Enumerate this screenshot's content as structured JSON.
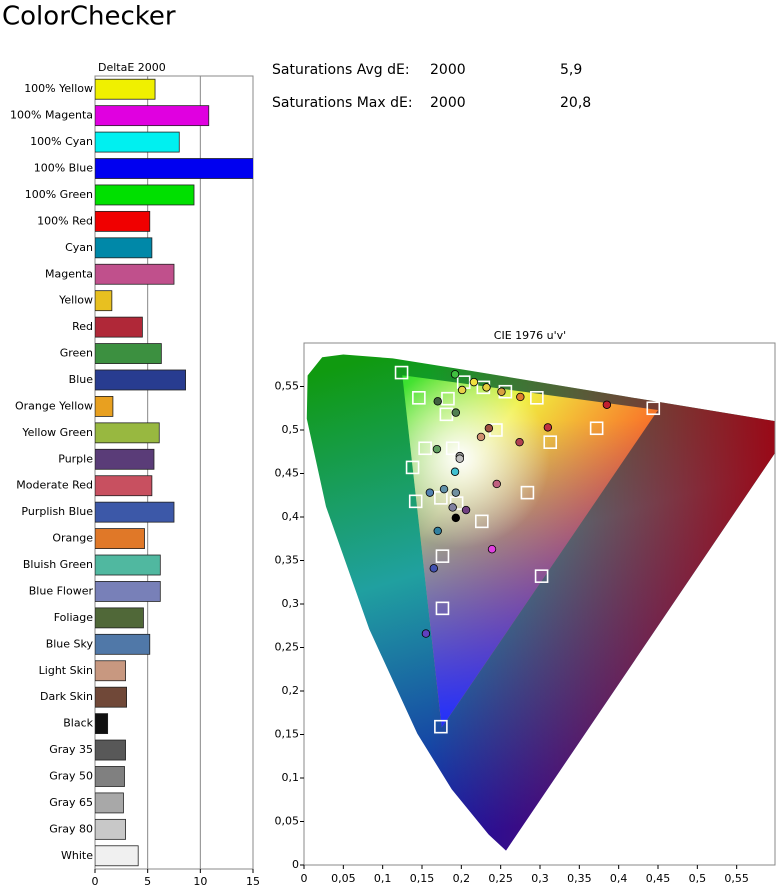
{
  "title": "ColorChecker",
  "stats": [
    {
      "label": "Saturations Avg dE:",
      "standard": "2000",
      "value": "5,9"
    },
    {
      "label": "Saturations Max dE:",
      "standard": "2000",
      "value": "20,8"
    }
  ],
  "chart_data": [
    {
      "type": "bar",
      "orientation": "horizontal",
      "title": "DeltaE 2000",
      "categories": [
        "100% Yellow",
        "100% Magenta",
        "100% Cyan",
        "100% Blue",
        "100% Green",
        "100% Red",
        "Cyan",
        "Magenta",
        "Yellow",
        "Red",
        "Green",
        "Blue",
        "Orange Yellow",
        "Yellow Green",
        "Purple",
        "Moderate Red",
        "Purplish Blue",
        "Orange",
        "Bluish Green",
        "Blue Flower",
        "Foliage",
        "Blue Sky",
        "Light Skin",
        "Dark Skin",
        "Black",
        "Gray 35",
        "Gray 50",
        "Gray 65",
        "Gray 80",
        "White"
      ],
      "values": [
        5.7,
        10.8,
        8.0,
        15.2,
        9.4,
        5.2,
        5.4,
        7.5,
        1.6,
        4.5,
        6.3,
        8.6,
        1.7,
        6.1,
        5.6,
        5.4,
        7.5,
        4.7,
        6.2,
        6.2,
        4.6,
        5.2,
        2.9,
        3.0,
        1.2,
        2.9,
        2.8,
        2.7,
        2.9,
        4.1
      ],
      "colors": [
        "#f0f000",
        "#e000e0",
        "#00f0f0",
        "#0000f0",
        "#00e000",
        "#f00000",
        "#0088a8",
        "#c0508c",
        "#e8c020",
        "#b02838",
        "#3c9040",
        "#283c90",
        "#e8a020",
        "#98b840",
        "#5a3c78",
        "#c85060",
        "#3c58a8",
        "#e07828",
        "#50b8a0",
        "#7880b8",
        "#506838",
        "#5078a8",
        "#c89880",
        "#704838",
        "#101010",
        "#585858",
        "#808080",
        "#a8a8a8",
        "#c8c8c8",
        "#f0f0f0"
      ],
      "xlim": [
        0,
        15
      ],
      "xticks": [
        0,
        5,
        10,
        15
      ],
      "grid": true
    },
    {
      "type": "scatter",
      "title": "CIE 1976 u'v'",
      "xlim": [
        0,
        0.6
      ],
      "ylim": [
        0,
        0.6
      ],
      "xticks": [
        0,
        {
          "value": 0.05,
          "label": "0,05"
        },
        {
          "value": 0.1,
          "label": "0,1"
        },
        {
          "value": 0.15,
          "label": "0,15"
        },
        {
          "value": 0.2,
          "label": "0,2"
        },
        {
          "value": 0.25,
          "label": "0,25"
        },
        {
          "value": 0.3,
          "label": "0,3"
        },
        {
          "value": 0.35,
          "label": "0,35"
        },
        {
          "value": 0.4,
          "label": "0,4"
        },
        {
          "value": 0.45,
          "label": "0,45"
        },
        {
          "value": 0.5,
          "label": "0,5"
        },
        {
          "value": 0.55,
          "label": "0,55"
        }
      ],
      "yticks": [
        0,
        {
          "value": 0.05,
          "label": "0,05"
        },
        {
          "value": 0.1,
          "label": "0,1"
        },
        {
          "value": 0.15,
          "label": "0,15"
        },
        {
          "value": 0.2,
          "label": "0,2"
        },
        {
          "value": 0.25,
          "label": "0,25"
        },
        {
          "value": 0.3,
          "label": "0,3"
        },
        {
          "value": 0.35,
          "label": "0,35"
        },
        {
          "value": 0.4,
          "label": "0,4"
        },
        {
          "value": 0.45,
          "label": "0,45"
        },
        {
          "value": 0.5,
          "label": "0,5"
        },
        {
          "value": 0.55,
          "label": "0,55"
        }
      ],
      "series": [
        {
          "marker": "square",
          "color": "#ffffff",
          "x": [
            0.124,
            0.146,
            0.183,
            0.203,
            0.228,
            0.256,
            0.296,
            0.444,
            0.181,
            0.244,
            0.313,
            0.372,
            0.189,
            0.154,
            0.138,
            0.142,
            0.174,
            0.194,
            0.226,
            0.284,
            0.176,
            0.302,
            0.176,
            0.174
          ],
          "y": [
            0.566,
            0.537,
            0.536,
            0.555,
            0.549,
            0.544,
            0.537,
            0.525,
            0.518,
            0.5,
            0.486,
            0.502,
            0.479,
            0.479,
            0.457,
            0.418,
            0.422,
            0.416,
            0.395,
            0.428,
            0.355,
            0.332,
            0.295,
            0.159
          ]
        },
        {
          "marker": "circle",
          "x": [
            0.192,
            0.216,
            0.232,
            0.275,
            0.251,
            0.201,
            0.17,
            0.193,
            0.31,
            0.385,
            0.235,
            0.225,
            0.274,
            0.169,
            0.198,
            0.198,
            0.192,
            0.193,
            0.178,
            0.16,
            0.189,
            0.206,
            0.245,
            0.193,
            0.17,
            0.239,
            0.165,
            0.155
          ],
          "y": [
            0.564,
            0.555,
            0.549,
            0.538,
            0.544,
            0.546,
            0.533,
            0.52,
            0.503,
            0.529,
            0.502,
            0.492,
            0.486,
            0.478,
            0.47,
            0.467,
            0.452,
            0.428,
            0.432,
            0.428,
            0.411,
            0.408,
            0.438,
            0.399,
            0.384,
            0.363,
            0.341,
            0.266
          ],
          "colors": [
            "#40c040",
            "#f0e040",
            "#e8d040",
            "#e08030",
            "#d8a040",
            "#e8d048",
            "#406040",
            "#508050",
            "#c03040",
            "#c02030",
            "#a05040",
            "#d09070",
            "#b04050",
            "#60a060",
            "#a0a0a0",
            "#c0c0c0",
            "#40c0d0",
            "#7090a0",
            "#6090a8",
            "#5080b0",
            "#8080a0",
            "#704080",
            "#c06080",
            "#000000",
            "#3080a0",
            "#e040e0",
            "#4050b0",
            "#6040c0"
          ]
        }
      ]
    }
  ]
}
